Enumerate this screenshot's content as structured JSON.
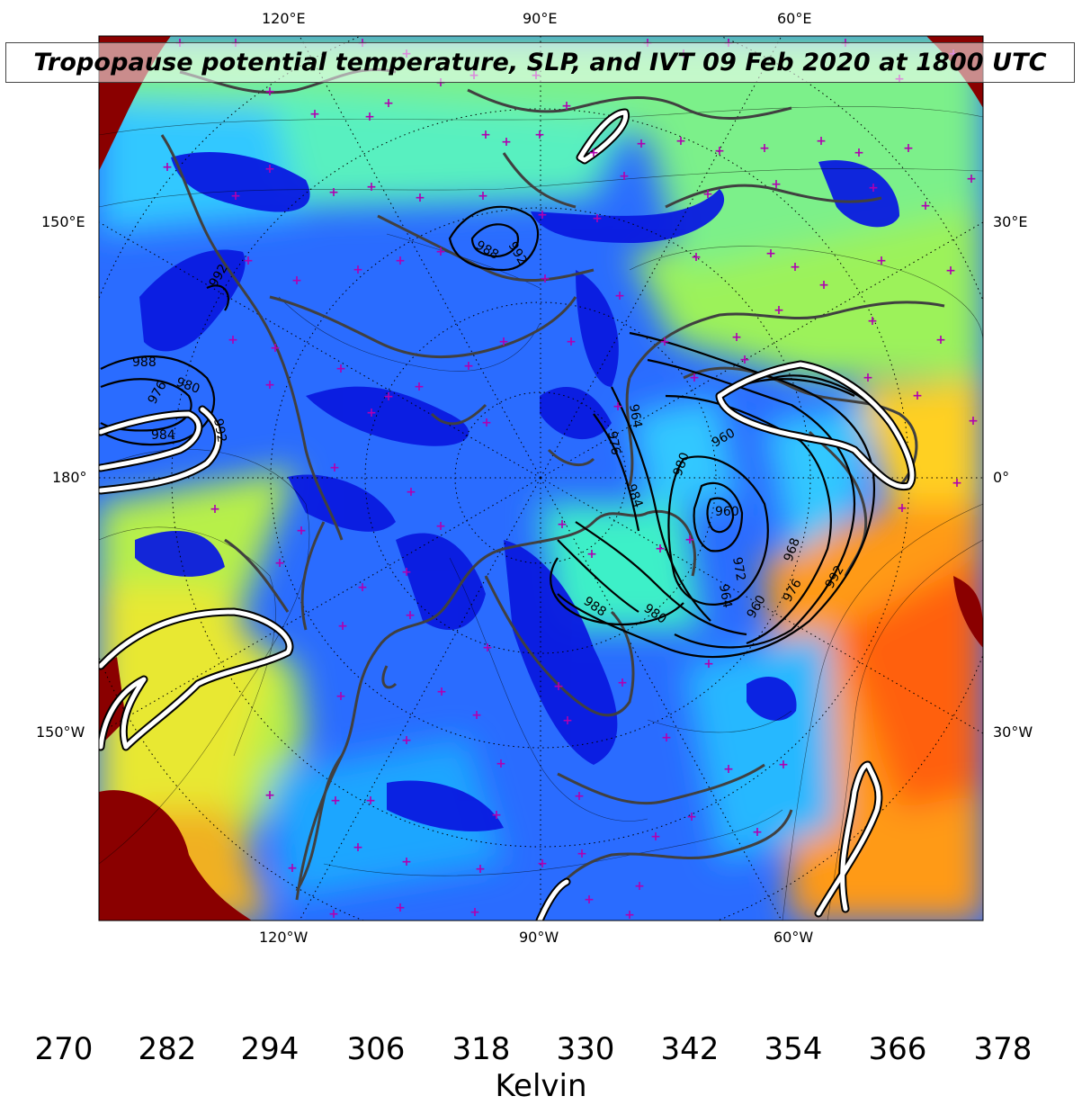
{
  "title": "Tropopause potential temperature, SLP, and IVT 09 Feb 2020 at 1800 UTC",
  "longitude_labels": {
    "top": [
      "120°E",
      "90°E",
      "60°E"
    ],
    "bottom": [
      "120°W",
      "90°W",
      "60°W"
    ],
    "left": [
      "150°E",
      "180°",
      "150°W"
    ],
    "right": [
      "30°E",
      "0°",
      "30°W"
    ]
  },
  "slp_contour_labels": [
    "988",
    "992",
    "984",
    "980",
    "976",
    "960",
    "964",
    "968",
    "972"
  ],
  "colorbar": {
    "label": "Kelvin",
    "ticks": [
      "270",
      "282",
      "294",
      "306",
      "318",
      "330",
      "342",
      "354",
      "366",
      "378"
    ],
    "min": 270,
    "max": 378,
    "extend": "both",
    "colormap": "jet",
    "colors": [
      "#00007f",
      "#0000ff",
      "#007fff",
      "#00ffff",
      "#7fff7f",
      "#ffff00",
      "#ff7f00",
      "#ff0000",
      "#7f0000"
    ]
  },
  "colors": {
    "coastline": "#404040",
    "slp_contour": "#000000",
    "ivt_contour": "#ffffff",
    "station_marker": "#b000b0",
    "graticule": "#000000"
  }
}
